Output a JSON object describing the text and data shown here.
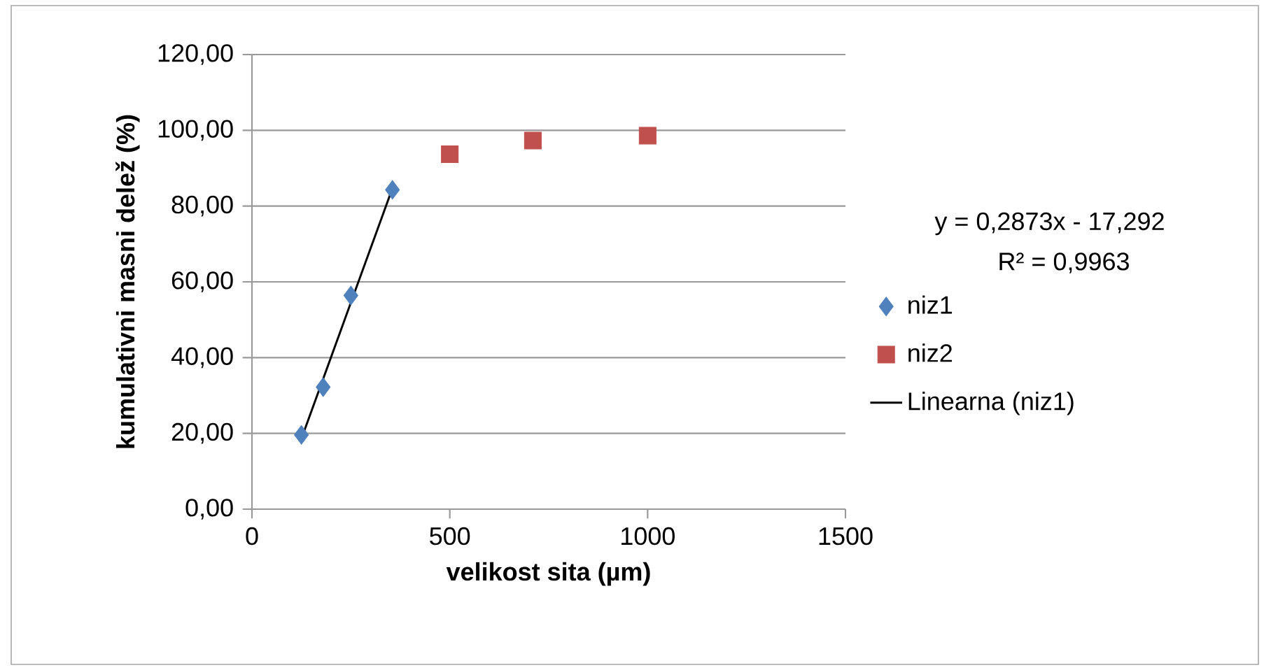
{
  "chart_data": {
    "type": "scatter",
    "xlabel": "velikost sita (µm)",
    "ylabel": "kumulativni masni delež (%)",
    "xlim": [
      0,
      1500
    ],
    "xticks": [
      0,
      500,
      1000,
      1500
    ],
    "ylim": [
      0,
      120
    ],
    "yticks": [
      {
        "value": 0,
        "label": "0,00"
      },
      {
        "value": 20,
        "label": "20,00"
      },
      {
        "value": 40,
        "label": "40,00"
      },
      {
        "value": 60,
        "label": "60,00"
      },
      {
        "value": 80,
        "label": "80,00"
      },
      {
        "value": 100,
        "label": "100,00"
      },
      {
        "value": 120,
        "label": "120,00"
      }
    ],
    "grid": "y",
    "legend": "right",
    "series": [
      {
        "name": "niz1",
        "color": "#4f81bd",
        "marker": "diamond",
        "x": [
          125,
          180,
          250,
          355
        ],
        "values": [
          19.6,
          32.2,
          56.4,
          84.3
        ]
      },
      {
        "name": "niz2",
        "color": "#c0504d",
        "marker": "square",
        "x": [
          500,
          710,
          1000
        ],
        "values": [
          93.7,
          97.3,
          98.6
        ]
      },
      {
        "name": "Linearna (niz1)",
        "type": "line",
        "color": "#000000",
        "marker": "none",
        "line_style": "solid",
        "x": [
          125,
          355
        ],
        "values": [
          18.6,
          84.7
        ]
      }
    ],
    "annotations": [
      "y = 0,2873x - 17,292",
      "R² = 0,9963"
    ]
  }
}
